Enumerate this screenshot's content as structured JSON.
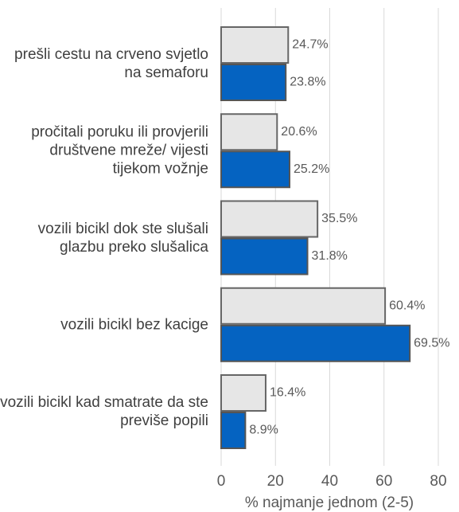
{
  "chart_data": {
    "type": "bar",
    "orientation": "horizontal",
    "categories": [
      "prešli cestu na crveno svjetlo na semaforu",
      "pročitali poruku ili provjerili društvene mreže/ vijesti tijekom vožnje",
      "vozili bicikl dok ste slušali glazbu preko slušalica",
      "vozili bicikl bez kacige",
      "vozili bicikl kad smatrate da ste previše popili"
    ],
    "series": [
      {
        "color": "#e6e6e6",
        "values": [
          24.7,
          20.6,
          35.5,
          60.4,
          16.4
        ],
        "value_labels": [
          "24.7%",
          "20.6%",
          "35.5%",
          "60.4%",
          "16.4%"
        ]
      },
      {
        "color": "#0563c1",
        "values": [
          23.8,
          25.2,
          31.8,
          69.5,
          8.9
        ],
        "value_labels": [
          "23.8%",
          "25.2%",
          "31.8%",
          "69.5%",
          "8.9%"
        ]
      }
    ],
    "xlabel": "% najmanje jednom (2-5)",
    "xlim": [
      0,
      80
    ],
    "xticks": [
      0,
      20,
      40,
      60,
      80
    ],
    "grid": true
  }
}
